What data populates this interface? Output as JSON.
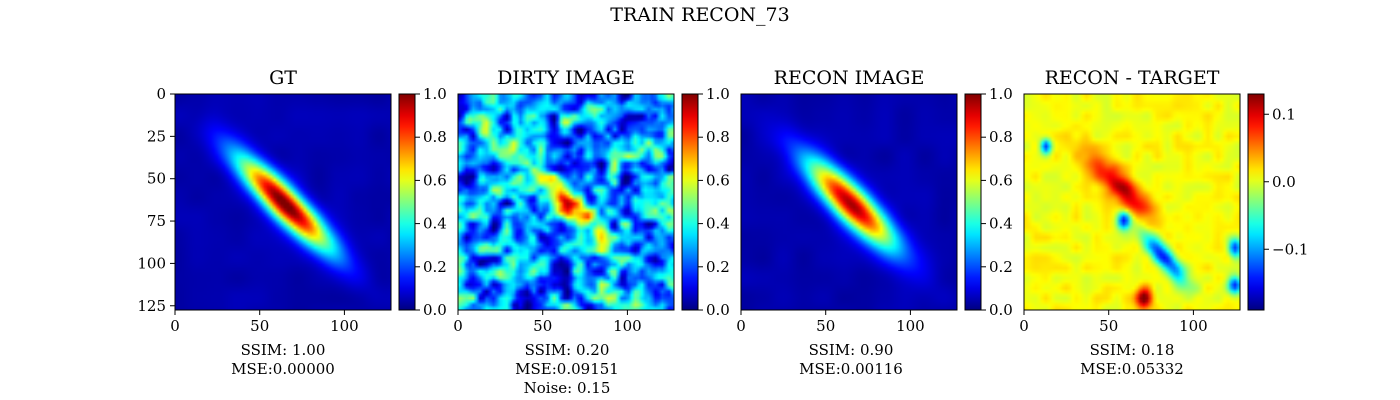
{
  "figure": {
    "suptitle": "TRAIN RECON_73"
  },
  "colors": {
    "colormap": "jet",
    "background": "#ffffff"
  },
  "chart_data": [
    {
      "type": "heatmap",
      "title": "GT",
      "xlim": [
        0,
        127
      ],
      "ylim": [
        127,
        0
      ],
      "xticks": [
        0,
        50,
        100
      ],
      "yticks": [
        0,
        25,
        50,
        75,
        100,
        125
      ],
      "colorbar": {
        "min": 0.0,
        "max": 1.0,
        "ticks": [
          0.0,
          0.2,
          0.4,
          0.6,
          0.8,
          1.0
        ],
        "tick_labels": [
          "0.0",
          "0.2",
          "0.4",
          "0.6",
          "0.8",
          "1.0"
        ]
      },
      "image": {
        "center": [
          64,
          64
        ],
        "angle_deg": 45,
        "major_half": 58,
        "minor_half": 10,
        "peak": 1.0,
        "noise": 0.0
      },
      "caption": [
        "SSIM: 1.00",
        "MSE:0.00000"
      ]
    },
    {
      "type": "heatmap",
      "title": "DIRTY IMAGE",
      "xlim": [
        0,
        127
      ],
      "ylim": [
        127,
        0
      ],
      "xticks": [
        0,
        50,
        100
      ],
      "yticks": [],
      "colorbar": {
        "min": 0.0,
        "max": 1.0,
        "ticks": [
          0.0,
          0.2,
          0.4,
          0.6,
          0.8,
          1.0
        ],
        "tick_labels": [
          "0.0",
          "0.2",
          "0.4",
          "0.6",
          "0.8",
          "1.0"
        ]
      },
      "image": {
        "center": [
          62,
          62
        ],
        "angle_deg": 45,
        "major_half": 60,
        "minor_half": 8,
        "peak": 0.8,
        "noise": 0.15
      },
      "caption": [
        "SSIM: 0.20",
        "MSE:0.09151",
        "Noise: 0.15"
      ]
    },
    {
      "type": "heatmap",
      "title": "RECON IMAGE",
      "xlim": [
        0,
        127
      ],
      "ylim": [
        127,
        0
      ],
      "xticks": [
        0,
        50,
        100
      ],
      "yticks": [],
      "colorbar": {
        "min": 0.0,
        "max": 1.0,
        "ticks": [
          0.0,
          0.2,
          0.4,
          0.6,
          0.8,
          1.0
        ],
        "tick_labels": [
          "0.0",
          "0.2",
          "0.4",
          "0.6",
          "0.8",
          "1.0"
        ]
      },
      "image": {
        "center": [
          64,
          64
        ],
        "angle_deg": 45,
        "major_half": 55,
        "minor_half": 11,
        "peak": 0.92,
        "noise": 0.0
      },
      "caption": [
        "SSIM: 0.90",
        "MSE:0.00116"
      ]
    },
    {
      "type": "heatmap",
      "title": "RECON - TARGET",
      "xlim": [
        0,
        127
      ],
      "ylim": [
        127,
        0
      ],
      "xticks": [
        0,
        50,
        100
      ],
      "yticks": [],
      "colorbar": {
        "min": -0.19,
        "max": 0.13,
        "ticks": [
          0.1,
          0.0,
          -0.1
        ],
        "tick_labels": [
          "0.1",
          "0.0",
          "−0.1"
        ]
      },
      "image": {
        "diff": true
      },
      "caption": [
        "SSIM: 0.18",
        "MSE:0.05332"
      ]
    }
  ]
}
